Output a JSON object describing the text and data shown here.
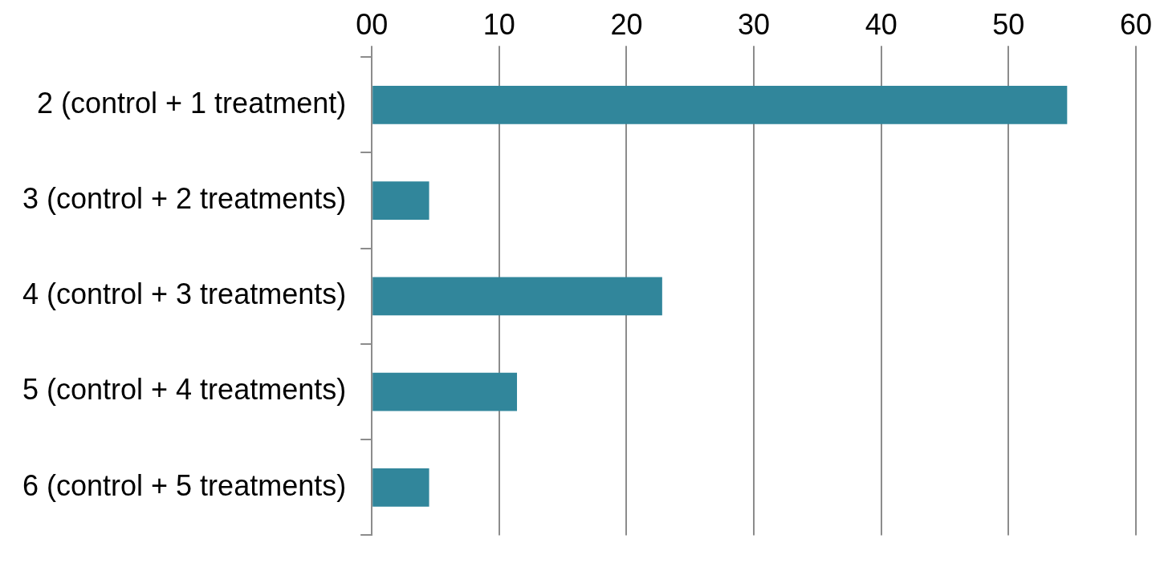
{
  "chart_data": {
    "type": "bar",
    "orientation": "horizontal",
    "categories": [
      "2 (control + 1 treatment)",
      "3 (control + 2 treatments)",
      "4 (control + 3 treatments)",
      "5 (control + 4 treatments)",
      "6 (control + 5 treatments)"
    ],
    "values": [
      54.6,
      4.5,
      22.8,
      11.4,
      4.5
    ],
    "color": "#31869b",
    "xlim": [
      0,
      60
    ],
    "xticks": [
      {
        "value": 0,
        "label": "00"
      },
      10,
      20,
      30,
      40,
      50,
      60
    ],
    "grid": "x"
  }
}
